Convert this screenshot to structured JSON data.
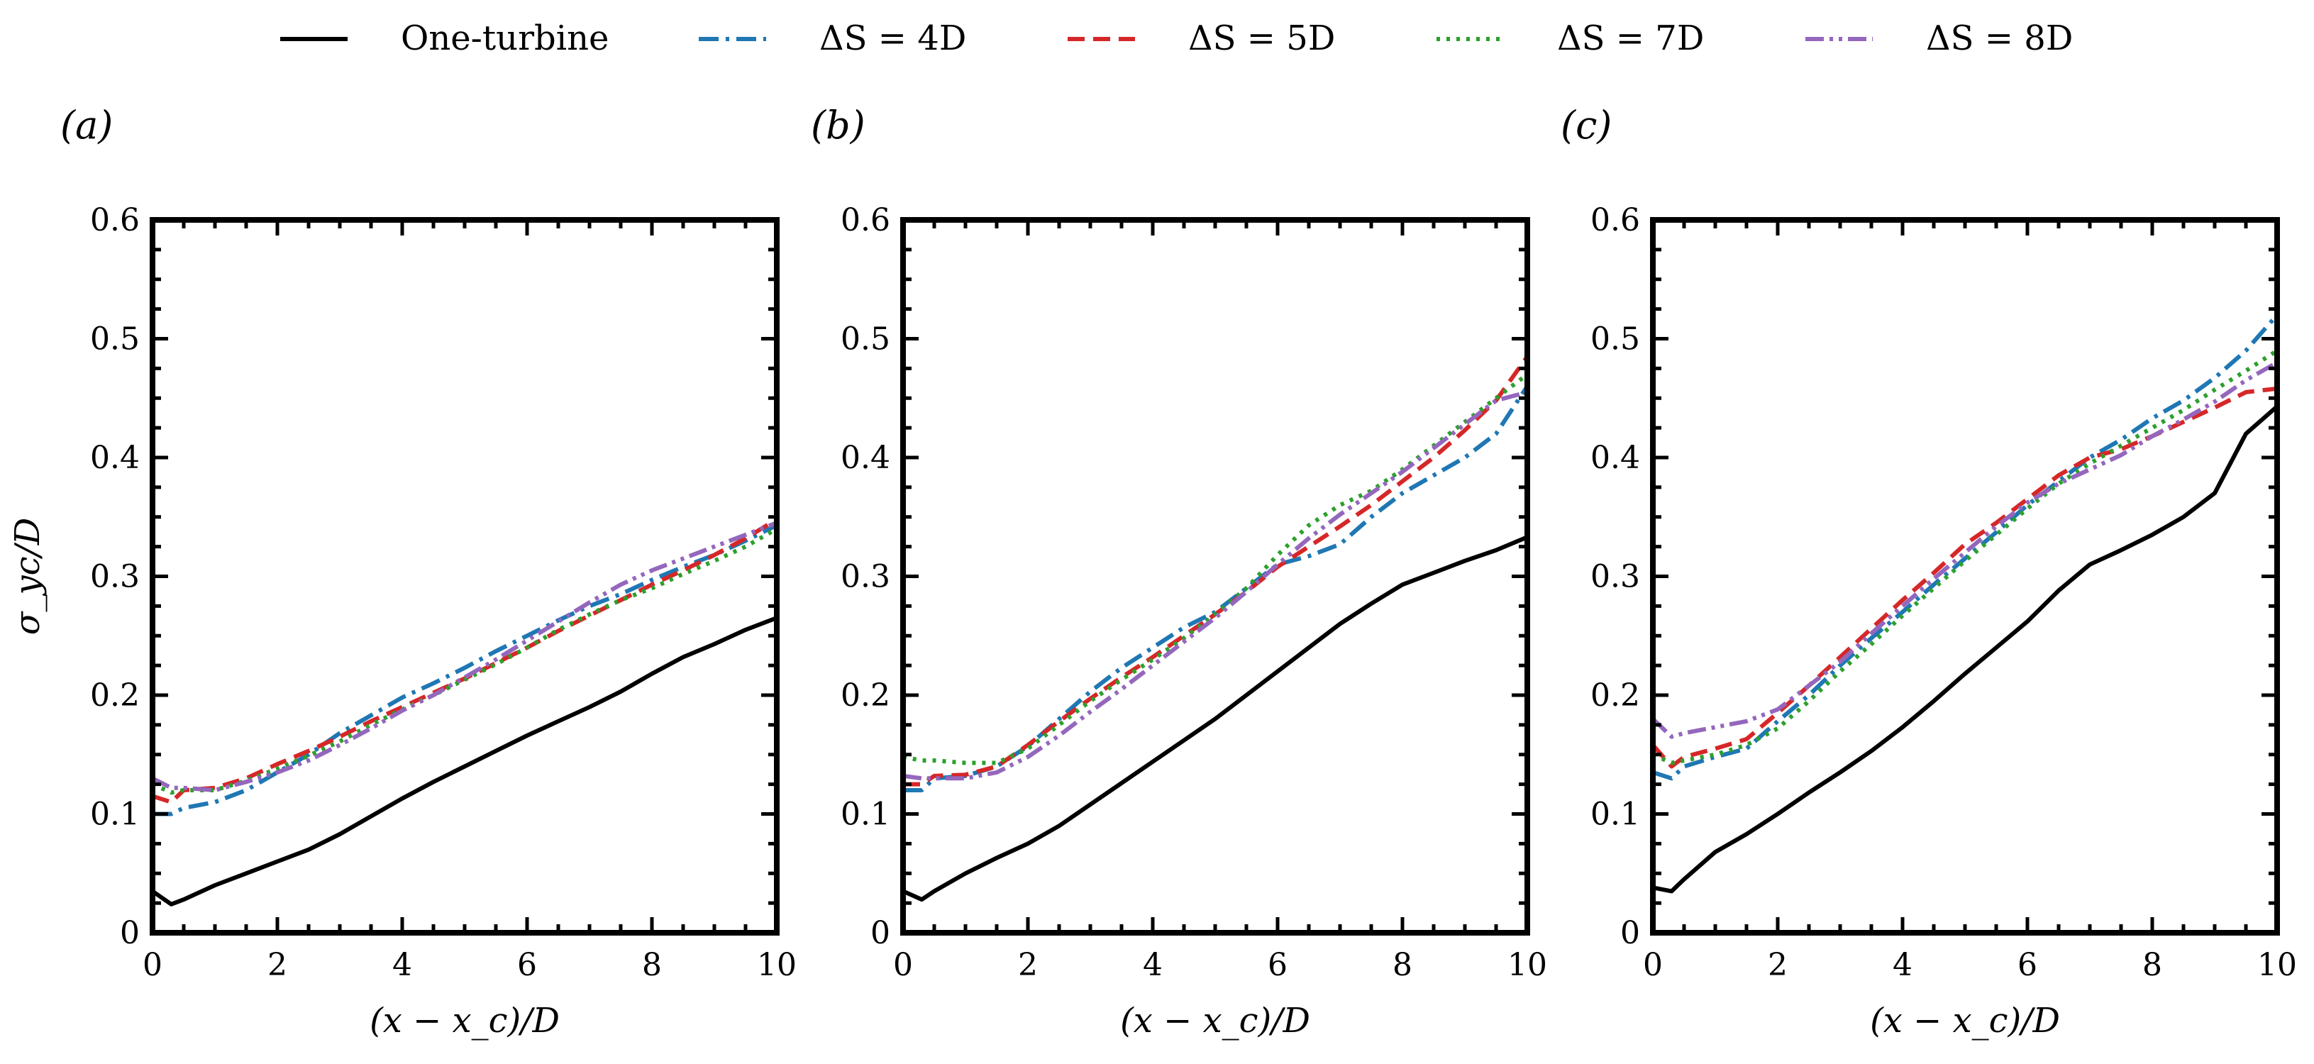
{
  "chart_data": {
    "type": "line",
    "legend": {
      "placement": "top-center",
      "entries": [
        {
          "key": "one",
          "label": "One-turbine"
        },
        {
          "key": "ds4",
          "label": "ΔS = 4D"
        },
        {
          "key": "ds5",
          "label": "ΔS = 5D"
        },
        {
          "key": "ds7",
          "label": "ΔS = 7D"
        },
        {
          "key": "ds8",
          "label": "ΔS = 8D"
        }
      ]
    },
    "series_styles": {
      "one": {
        "color": "#000000",
        "dash": "solid"
      },
      "ds4": {
        "color": "#1f77b4",
        "dash": "dashdot"
      },
      "ds5": {
        "color": "#d62728",
        "dash": "dashed"
      },
      "ds7": {
        "color": "#2ca02c",
        "dash": "dotted"
      },
      "ds8": {
        "color": "#9467bd",
        "dash": "dashdotdot"
      }
    },
    "xlabel": "(x − x_c)/D",
    "ylabel": "σ_yc/D",
    "xlim": [
      0,
      10
    ],
    "ylim": [
      0,
      0.6
    ],
    "xticks": [
      0,
      2,
      4,
      6,
      8,
      10
    ],
    "yticks": [
      0.0,
      0.1,
      0.2,
      0.3,
      0.4,
      0.5,
      0.6
    ],
    "grid": false,
    "panels": [
      {
        "label": "(a)",
        "series": [
          {
            "key": "one",
            "x": [
              0,
              0.3,
              0.5,
              1,
              1.5,
              2,
              2.5,
              3,
              3.5,
              4,
              4.5,
              5,
              5.5,
              6,
              6.5,
              7,
              7.5,
              8,
              8.5,
              9,
              9.5,
              10
            ],
            "y": [
              0.035,
              0.024,
              0.028,
              0.04,
              0.05,
              0.06,
              0.07,
              0.083,
              0.098,
              0.113,
              0.127,
              0.14,
              0.153,
              0.166,
              0.178,
              0.19,
              0.203,
              0.218,
              0.232,
              0.243,
              0.255,
              0.265
            ]
          },
          {
            "key": "ds4",
            "x": [
              0,
              0.3,
              0.5,
              1,
              1.5,
              2,
              2.5,
              3,
              3.5,
              4,
              4.5,
              5,
              5.5,
              6,
              6.5,
              7,
              7.5,
              8,
              8.5,
              9,
              9.5,
              10
            ],
            "y": [
              0.1,
              0.1,
              0.105,
              0.11,
              0.12,
              0.135,
              0.15,
              0.168,
              0.183,
              0.198,
              0.21,
              0.223,
              0.237,
              0.25,
              0.263,
              0.275,
              0.285,
              0.297,
              0.308,
              0.318,
              0.33,
              0.343
            ]
          },
          {
            "key": "ds5",
            "x": [
              0,
              0.3,
              0.5,
              1,
              1.5,
              2,
              2.5,
              3,
              3.5,
              4,
              4.5,
              5,
              5.5,
              6,
              6.5,
              7,
              7.5,
              8,
              8.5,
              9,
              9.5,
              10
            ],
            "y": [
              0.115,
              0.11,
              0.12,
              0.122,
              0.13,
              0.142,
              0.153,
              0.165,
              0.178,
              0.19,
              0.202,
              0.214,
              0.227,
              0.24,
              0.254,
              0.267,
              0.28,
              0.293,
              0.305,
              0.318,
              0.332,
              0.348
            ]
          },
          {
            "key": "ds7",
            "x": [
              0,
              0.3,
              0.5,
              1,
              1.5,
              2,
              2.5,
              3,
              3.5,
              4,
              4.5,
              5,
              5.5,
              6,
              6.5,
              7,
              7.5,
              8,
              8.5,
              9,
              9.5,
              10
            ],
            "y": [
              0.125,
              0.118,
              0.12,
              0.12,
              0.128,
              0.138,
              0.149,
              0.161,
              0.175,
              0.188,
              0.2,
              0.213,
              0.226,
              0.24,
              0.255,
              0.268,
              0.28,
              0.29,
              0.302,
              0.313,
              0.325,
              0.34
            ]
          },
          {
            "key": "ds8",
            "x": [
              0,
              0.3,
              0.5,
              1,
              1.5,
              2,
              2.5,
              3,
              3.5,
              4,
              4.5,
              5,
              5.5,
              6,
              6.5,
              7,
              7.5,
              8,
              8.5,
              9,
              9.5,
              10
            ],
            "y": [
              0.13,
              0.122,
              0.122,
              0.12,
              0.127,
              0.135,
              0.145,
              0.158,
              0.172,
              0.187,
              0.2,
              0.215,
              0.23,
              0.246,
              0.262,
              0.278,
              0.293,
              0.305,
              0.315,
              0.325,
              0.335,
              0.345
            ]
          }
        ]
      },
      {
        "label": "(b)",
        "series": [
          {
            "key": "one",
            "x": [
              0,
              0.3,
              0.5,
              1,
              1.5,
              2,
              2.5,
              3,
              3.5,
              4,
              4.5,
              5,
              5.5,
              6,
              6.5,
              7,
              7.5,
              8,
              8.5,
              9,
              9.5,
              10
            ],
            "y": [
              0.035,
              0.028,
              0.035,
              0.05,
              0.063,
              0.075,
              0.09,
              0.108,
              0.126,
              0.144,
              0.162,
              0.18,
              0.2,
              0.22,
              0.24,
              0.26,
              0.277,
              0.293,
              0.303,
              0.313,
              0.322,
              0.333
            ]
          },
          {
            "key": "ds4",
            "x": [
              0,
              0.3,
              0.5,
              1,
              1.5,
              2,
              2.5,
              3,
              3.5,
              4,
              4.5,
              5,
              5.5,
              6,
              6.5,
              7,
              7.5,
              8,
              8.5,
              9,
              9.5,
              10
            ],
            "y": [
              0.12,
              0.12,
              0.13,
              0.132,
              0.14,
              0.157,
              0.18,
              0.203,
              0.223,
              0.24,
              0.257,
              0.27,
              0.29,
              0.31,
              0.317,
              0.327,
              0.35,
              0.37,
              0.385,
              0.4,
              0.42,
              0.46
            ]
          },
          {
            "key": "ds5",
            "x": [
              0,
              0.3,
              0.5,
              1,
              1.5,
              2,
              2.5,
              3,
              3.5,
              4,
              4.5,
              5,
              5.5,
              6,
              6.5,
              7,
              7.5,
              8,
              8.5,
              9,
              9.5,
              10
            ],
            "y": [
              0.125,
              0.125,
              0.132,
              0.133,
              0.14,
              0.158,
              0.178,
              0.197,
              0.215,
              0.232,
              0.25,
              0.268,
              0.287,
              0.308,
              0.325,
              0.342,
              0.36,
              0.38,
              0.4,
              0.423,
              0.448,
              0.485
            ]
          },
          {
            "key": "ds7",
            "x": [
              0,
              0.3,
              0.5,
              1,
              1.5,
              2,
              2.5,
              3,
              3.5,
              4,
              4.5,
              5,
              5.5,
              6,
              6.5,
              7,
              7.5,
              8,
              8.5,
              9,
              9.5,
              10
            ],
            "y": [
              0.148,
              0.145,
              0.145,
              0.143,
              0.143,
              0.155,
              0.175,
              0.195,
              0.213,
              0.23,
              0.248,
              0.268,
              0.29,
              0.318,
              0.343,
              0.36,
              0.372,
              0.39,
              0.41,
              0.43,
              0.45,
              0.47
            ]
          },
          {
            "key": "ds8",
            "x": [
              0,
              0.3,
              0.5,
              1,
              1.5,
              2,
              2.5,
              3,
              3.5,
              4,
              4.5,
              5,
              5.5,
              6,
              6.5,
              7,
              7.5,
              8,
              8.5,
              9,
              9.5,
              10
            ],
            "y": [
              0.132,
              0.13,
              0.13,
              0.13,
              0.135,
              0.148,
              0.166,
              0.186,
              0.205,
              0.225,
              0.245,
              0.265,
              0.287,
              0.31,
              0.332,
              0.352,
              0.37,
              0.388,
              0.408,
              0.428,
              0.448,
              0.455
            ]
          }
        ]
      },
      {
        "label": "(c)",
        "series": [
          {
            "key": "one",
            "x": [
              0,
              0.3,
              0.5,
              1,
              1.5,
              2,
              2.5,
              3,
              3.5,
              4,
              4.5,
              5,
              5.5,
              6,
              6.5,
              7,
              7.5,
              8,
              8.5,
              9,
              9.5,
              10
            ],
            "y": [
              0.038,
              0.035,
              0.045,
              0.068,
              0.083,
              0.1,
              0.118,
              0.135,
              0.153,
              0.173,
              0.195,
              0.218,
              0.24,
              0.262,
              0.288,
              0.31,
              0.322,
              0.335,
              0.35,
              0.37,
              0.42,
              0.443
            ]
          },
          {
            "key": "ds4",
            "x": [
              0,
              0.3,
              0.5,
              1,
              1.5,
              2,
              2.5,
              3,
              3.5,
              4,
              4.5,
              5,
              5.5,
              6,
              6.5,
              7,
              7.5,
              8,
              8.5,
              9,
              9.5,
              10
            ],
            "y": [
              0.135,
              0.13,
              0.14,
              0.148,
              0.155,
              0.178,
              0.2,
              0.225,
              0.248,
              0.27,
              0.293,
              0.315,
              0.337,
              0.36,
              0.38,
              0.4,
              0.415,
              0.433,
              0.448,
              0.467,
              0.49,
              0.52
            ]
          },
          {
            "key": "ds5",
            "x": [
              0,
              0.3,
              0.5,
              1,
              1.5,
              2,
              2.5,
              3,
              3.5,
              4,
              4.5,
              5,
              5.5,
              6,
              6.5,
              7,
              7.5,
              8,
              8.5,
              9,
              9.5,
              10
            ],
            "y": [
              0.158,
              0.14,
              0.148,
              0.155,
              0.163,
              0.185,
              0.208,
              0.232,
              0.256,
              0.28,
              0.303,
              0.327,
              0.345,
              0.365,
              0.385,
              0.4,
              0.407,
              0.418,
              0.43,
              0.442,
              0.455,
              0.458
            ]
          },
          {
            "key": "ds7",
            "x": [
              0,
              0.3,
              0.5,
              1,
              1.5,
              2,
              2.5,
              3,
              3.5,
              4,
              4.5,
              5,
              5.5,
              6,
              6.5,
              7,
              7.5,
              8,
              8.5,
              9,
              9.5,
              10
            ],
            "y": [
              0.15,
              0.143,
              0.145,
              0.15,
              0.158,
              0.172,
              0.195,
              0.22,
              0.243,
              0.267,
              0.29,
              0.313,
              0.335,
              0.357,
              0.378,
              0.395,
              0.41,
              0.425,
              0.44,
              0.457,
              0.473,
              0.49
            ]
          },
          {
            "key": "ds8",
            "x": [
              0,
              0.3,
              0.5,
              1,
              1.5,
              2,
              2.5,
              3,
              3.5,
              4,
              4.5,
              5,
              5.5,
              6,
              6.5,
              7,
              7.5,
              8,
              8.5,
              9,
              9.5,
              10
            ],
            "y": [
              0.18,
              0.165,
              0.168,
              0.173,
              0.178,
              0.188,
              0.208,
              0.228,
              0.252,
              0.275,
              0.298,
              0.32,
              0.342,
              0.362,
              0.378,
              0.39,
              0.402,
              0.418,
              0.432,
              0.447,
              0.465,
              0.48
            ]
          }
        ]
      }
    ]
  }
}
